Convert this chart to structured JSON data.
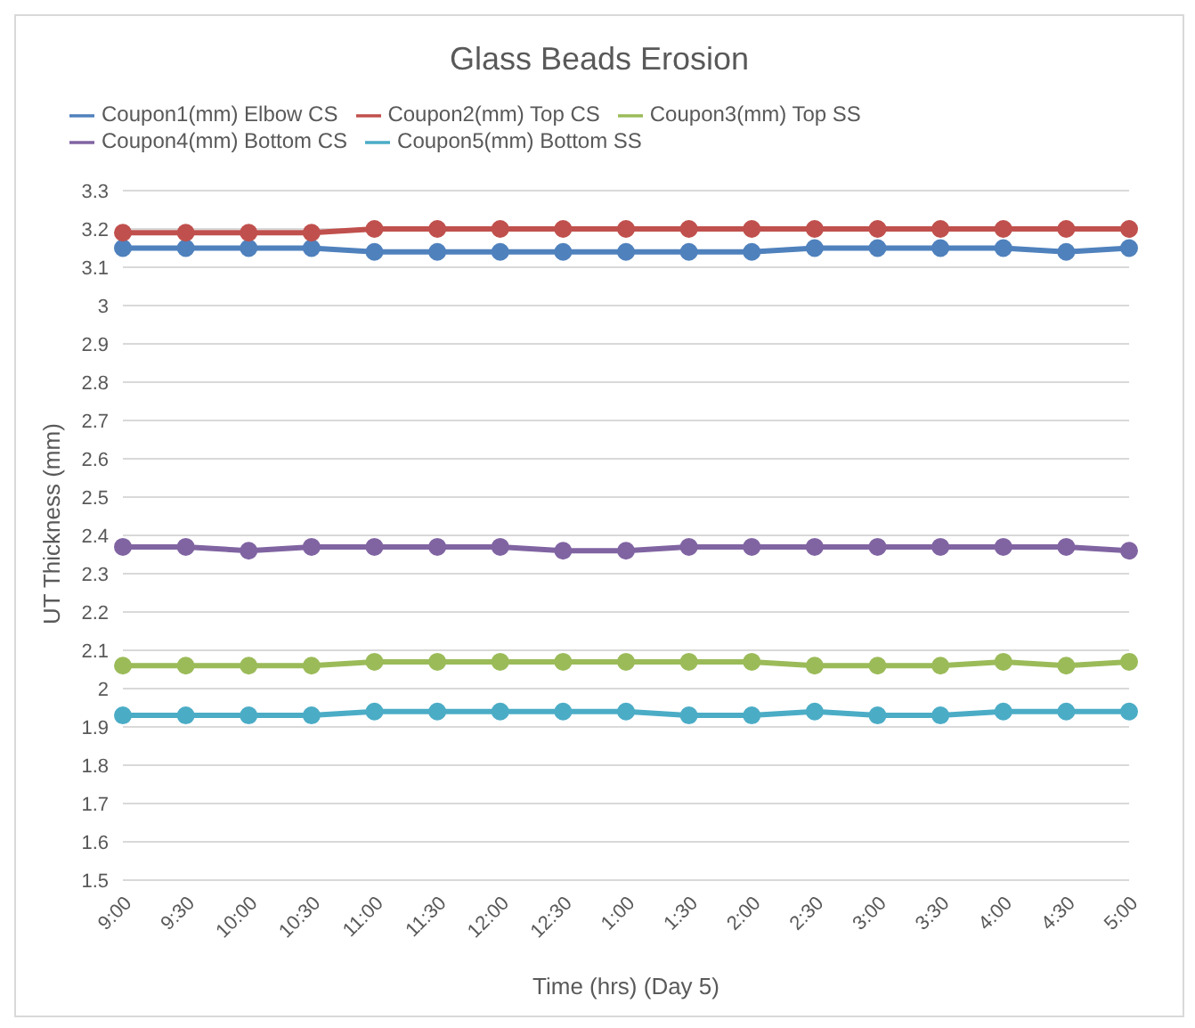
{
  "chart_data": {
    "type": "line",
    "title": "Glass Beads Erosion",
    "xlabel": "Time (hrs) (Day 5)",
    "ylabel": "UT Thickness (mm)",
    "categories": [
      "9:00",
      "9:30",
      "10:00",
      "10:30",
      "11:00",
      "11:30",
      "12:00",
      "12:30",
      "1:00",
      "1:30",
      "2:00",
      "2:30",
      "3:00",
      "3:30",
      "4:00",
      "4:30",
      "5:00"
    ],
    "series": [
      {
        "name": "Coupon1(mm) Elbow CS",
        "color": "#4f81bd",
        "values": [
          3.15,
          3.15,
          3.15,
          3.15,
          3.14,
          3.14,
          3.14,
          3.14,
          3.14,
          3.14,
          3.14,
          3.15,
          3.15,
          3.15,
          3.15,
          3.14,
          3.15
        ]
      },
      {
        "name": "Coupon2(mm) Top CS",
        "color": "#c0504d",
        "values": [
          3.19,
          3.19,
          3.19,
          3.19,
          3.2,
          3.2,
          3.2,
          3.2,
          3.2,
          3.2,
          3.2,
          3.2,
          3.2,
          3.2,
          3.2,
          3.2,
          3.2
        ]
      },
      {
        "name": "Coupon3(mm) Top SS",
        "color": "#9bbb59",
        "values": [
          2.06,
          2.06,
          2.06,
          2.06,
          2.07,
          2.07,
          2.07,
          2.07,
          2.07,
          2.07,
          2.07,
          2.06,
          2.06,
          2.06,
          2.07,
          2.06,
          2.07
        ]
      },
      {
        "name": "Coupon4(mm) Bottom CS",
        "color": "#8064a2",
        "values": [
          2.37,
          2.37,
          2.36,
          2.37,
          2.37,
          2.37,
          2.37,
          2.36,
          2.36,
          2.37,
          2.37,
          2.37,
          2.37,
          2.37,
          2.37,
          2.37,
          2.36
        ]
      },
      {
        "name": "Coupon5(mm) Bottom SS",
        "color": "#4bacc6",
        "values": [
          1.93,
          1.93,
          1.93,
          1.93,
          1.94,
          1.94,
          1.94,
          1.94,
          1.94,
          1.93,
          1.93,
          1.94,
          1.93,
          1.93,
          1.94,
          1.94,
          1.94
        ]
      }
    ],
    "ylim": [
      1.5,
      3.3
    ],
    "yticks": [
      1.5,
      1.6,
      1.7,
      1.8,
      1.9,
      2,
      2.1,
      2.2,
      2.3,
      2.4,
      2.5,
      2.6,
      2.7,
      2.8,
      2.9,
      3,
      3.1,
      3.2,
      3.3
    ],
    "grid": "y",
    "legend": "top",
    "marker": "circle",
    "line_style": "solid"
  }
}
